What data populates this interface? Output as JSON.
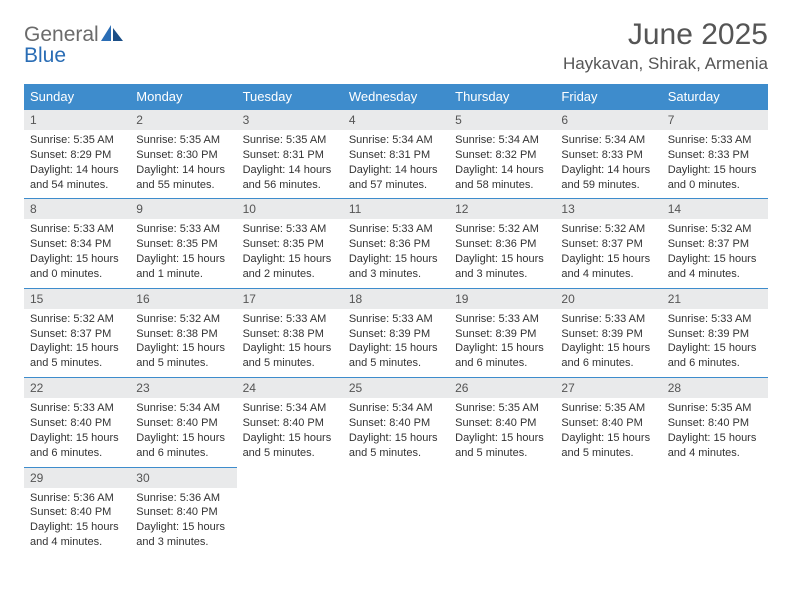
{
  "logo": {
    "part1": "General",
    "part2": "Blue"
  },
  "title": "June 2025",
  "location": "Haykavan, Shirak, Armenia",
  "colors": {
    "header_bg": "#3e8ccc",
    "header_fg": "#ffffff",
    "daynum_bg": "#e9eaeb",
    "row_border": "#3e8ccc",
    "logo_gray": "#6b6b6b",
    "logo_blue": "#2a6db5"
  },
  "weekdays": [
    "Sunday",
    "Monday",
    "Tuesday",
    "Wednesday",
    "Thursday",
    "Friday",
    "Saturday"
  ],
  "days": [
    {
      "n": "1",
      "sr": "5:35 AM",
      "ss": "8:29 PM",
      "dl1": "Daylight: 14 hours",
      "dl2": "and 54 minutes."
    },
    {
      "n": "2",
      "sr": "5:35 AM",
      "ss": "8:30 PM",
      "dl1": "Daylight: 14 hours",
      "dl2": "and 55 minutes."
    },
    {
      "n": "3",
      "sr": "5:35 AM",
      "ss": "8:31 PM",
      "dl1": "Daylight: 14 hours",
      "dl2": "and 56 minutes."
    },
    {
      "n": "4",
      "sr": "5:34 AM",
      "ss": "8:31 PM",
      "dl1": "Daylight: 14 hours",
      "dl2": "and 57 minutes."
    },
    {
      "n": "5",
      "sr": "5:34 AM",
      "ss": "8:32 PM",
      "dl1": "Daylight: 14 hours",
      "dl2": "and 58 minutes."
    },
    {
      "n": "6",
      "sr": "5:34 AM",
      "ss": "8:33 PM",
      "dl1": "Daylight: 14 hours",
      "dl2": "and 59 minutes."
    },
    {
      "n": "7",
      "sr": "5:33 AM",
      "ss": "8:33 PM",
      "dl1": "Daylight: 15 hours",
      "dl2": "and 0 minutes."
    },
    {
      "n": "8",
      "sr": "5:33 AM",
      "ss": "8:34 PM",
      "dl1": "Daylight: 15 hours",
      "dl2": "and 0 minutes."
    },
    {
      "n": "9",
      "sr": "5:33 AM",
      "ss": "8:35 PM",
      "dl1": "Daylight: 15 hours",
      "dl2": "and 1 minute."
    },
    {
      "n": "10",
      "sr": "5:33 AM",
      "ss": "8:35 PM",
      "dl1": "Daylight: 15 hours",
      "dl2": "and 2 minutes."
    },
    {
      "n": "11",
      "sr": "5:33 AM",
      "ss": "8:36 PM",
      "dl1": "Daylight: 15 hours",
      "dl2": "and 3 minutes."
    },
    {
      "n": "12",
      "sr": "5:32 AM",
      "ss": "8:36 PM",
      "dl1": "Daylight: 15 hours",
      "dl2": "and 3 minutes."
    },
    {
      "n": "13",
      "sr": "5:32 AM",
      "ss": "8:37 PM",
      "dl1": "Daylight: 15 hours",
      "dl2": "and 4 minutes."
    },
    {
      "n": "14",
      "sr": "5:32 AM",
      "ss": "8:37 PM",
      "dl1": "Daylight: 15 hours",
      "dl2": "and 4 minutes."
    },
    {
      "n": "15",
      "sr": "5:32 AM",
      "ss": "8:37 PM",
      "dl1": "Daylight: 15 hours",
      "dl2": "and 5 minutes."
    },
    {
      "n": "16",
      "sr": "5:32 AM",
      "ss": "8:38 PM",
      "dl1": "Daylight: 15 hours",
      "dl2": "and 5 minutes."
    },
    {
      "n": "17",
      "sr": "5:33 AM",
      "ss": "8:38 PM",
      "dl1": "Daylight: 15 hours",
      "dl2": "and 5 minutes."
    },
    {
      "n": "18",
      "sr": "5:33 AM",
      "ss": "8:39 PM",
      "dl1": "Daylight: 15 hours",
      "dl2": "and 5 minutes."
    },
    {
      "n": "19",
      "sr": "5:33 AM",
      "ss": "8:39 PM",
      "dl1": "Daylight: 15 hours",
      "dl2": "and 6 minutes."
    },
    {
      "n": "20",
      "sr": "5:33 AM",
      "ss": "8:39 PM",
      "dl1": "Daylight: 15 hours",
      "dl2": "and 6 minutes."
    },
    {
      "n": "21",
      "sr": "5:33 AM",
      "ss": "8:39 PM",
      "dl1": "Daylight: 15 hours",
      "dl2": "and 6 minutes."
    },
    {
      "n": "22",
      "sr": "5:33 AM",
      "ss": "8:40 PM",
      "dl1": "Daylight: 15 hours",
      "dl2": "and 6 minutes."
    },
    {
      "n": "23",
      "sr": "5:34 AM",
      "ss": "8:40 PM",
      "dl1": "Daylight: 15 hours",
      "dl2": "and 6 minutes."
    },
    {
      "n": "24",
      "sr": "5:34 AM",
      "ss": "8:40 PM",
      "dl1": "Daylight: 15 hours",
      "dl2": "and 5 minutes."
    },
    {
      "n": "25",
      "sr": "5:34 AM",
      "ss": "8:40 PM",
      "dl1": "Daylight: 15 hours",
      "dl2": "and 5 minutes."
    },
    {
      "n": "26",
      "sr": "5:35 AM",
      "ss": "8:40 PM",
      "dl1": "Daylight: 15 hours",
      "dl2": "and 5 minutes."
    },
    {
      "n": "27",
      "sr": "5:35 AM",
      "ss": "8:40 PM",
      "dl1": "Daylight: 15 hours",
      "dl2": "and 5 minutes."
    },
    {
      "n": "28",
      "sr": "5:35 AM",
      "ss": "8:40 PM",
      "dl1": "Daylight: 15 hours",
      "dl2": "and 4 minutes."
    },
    {
      "n": "29",
      "sr": "5:36 AM",
      "ss": "8:40 PM",
      "dl1": "Daylight: 15 hours",
      "dl2": "and 4 minutes."
    },
    {
      "n": "30",
      "sr": "5:36 AM",
      "ss": "8:40 PM",
      "dl1": "Daylight: 15 hours",
      "dl2": "and 3 minutes."
    }
  ],
  "sunrise_prefix": "Sunrise: ",
  "sunset_prefix": "Sunset: "
}
